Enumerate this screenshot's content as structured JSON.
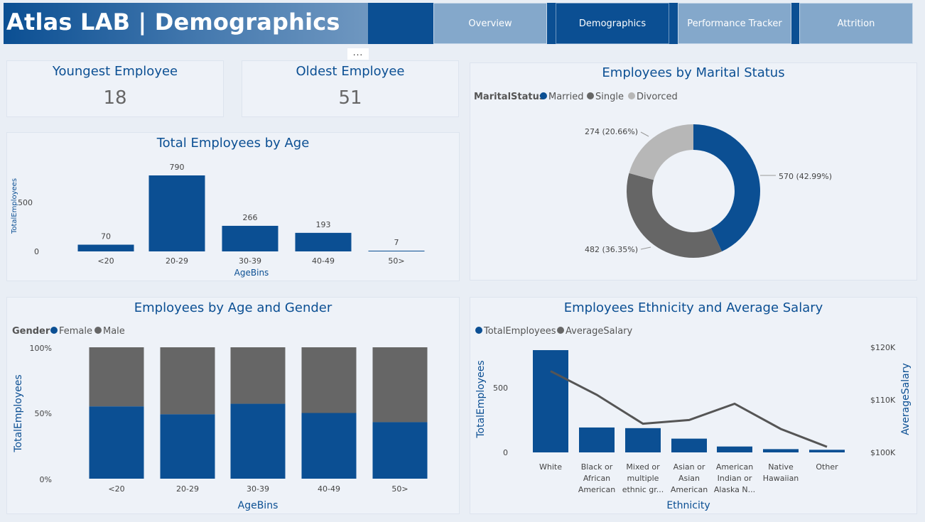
{
  "header": {
    "title": "Atlas LAB | Demographics"
  },
  "nav": {
    "tabs": [
      {
        "label": "Overview"
      },
      {
        "label": "Demographics"
      },
      {
        "label": "Performance Tracker"
      },
      {
        "label": "Attrition"
      }
    ],
    "more": "..."
  },
  "kpis": {
    "youngest": {
      "label": "Youngest Employee",
      "value": "18"
    },
    "oldest": {
      "label": "Oldest Employee",
      "value": "51"
    }
  },
  "colors": {
    "blue": "#0b4f93",
    "darkgray": "#666666",
    "lightgray": "#b7b7b7",
    "line": "#555555"
  },
  "age_chart": {
    "title": "Total Employees by Age",
    "ylabel": "TotalEmployees",
    "xlabel": "AgeBins",
    "ticks": [
      "500",
      "0"
    ]
  },
  "marital_chart": {
    "title": "Employees by Marital Status",
    "legend_title": "MaritalStatus",
    "legend": [
      "Married",
      "Single",
      "Divorced"
    ],
    "labels": [
      "570 (42.99%)",
      "482 (36.35%)",
      "274 (20.66%)"
    ]
  },
  "gender_chart": {
    "title": "Employees by Age and Gender",
    "legend_title": "Gender",
    "legend": [
      "Female",
      "Male"
    ],
    "ylabel": "TotalEmployees",
    "xlabel": "AgeBins",
    "ticks": [
      "100%",
      "50%",
      "0%"
    ]
  },
  "eth_chart": {
    "title": "Employees Ethnicity and Average Salary",
    "legend": [
      "TotalEmployees",
      "AverageSalary"
    ],
    "ylabel": "TotalEmployees",
    "y2label": "AverageSalary",
    "xlabel": "Ethnicity",
    "ticks": [
      "500",
      "0"
    ],
    "ticks2": [
      "$120K",
      "$110K",
      "$100K"
    ],
    "cat_lines": [
      [
        "White"
      ],
      [
        "Black or",
        "African",
        "American"
      ],
      [
        "Mixed or",
        "multiple",
        "ethnic gr..."
      ],
      [
        "Asian or",
        "Asian",
        "American"
      ],
      [
        "American",
        "Indian or",
        "Alaska N..."
      ],
      [
        "Native",
        "Hawaiian"
      ],
      [
        "Other"
      ]
    ]
  },
  "chart_data": [
    {
      "type": "bar",
      "title": "Total Employees by Age",
      "categories": [
        "<20",
        "20-29",
        "30-39",
        "40-49",
        "50>"
      ],
      "values": [
        70,
        790,
        266,
        193,
        7
      ],
      "xlabel": "AgeBins",
      "ylabel": "TotalEmployees",
      "ylim": [
        0,
        790
      ]
    },
    {
      "type": "pie",
      "title": "Employees by Marital Status",
      "categories": [
        "Married",
        "Single",
        "Divorced"
      ],
      "values": [
        570,
        482,
        274
      ],
      "percents": [
        42.99,
        36.35,
        20.66
      ],
      "donut": true
    },
    {
      "type": "bar",
      "stacked": "percent",
      "title": "Employees by Age and Gender",
      "categories": [
        "<20",
        "20-29",
        "30-39",
        "40-49",
        "50>"
      ],
      "series": [
        {
          "name": "Female",
          "values": [
            55,
            49,
            57,
            50,
            43
          ]
        },
        {
          "name": "Male",
          "values": [
            45,
            51,
            43,
            50,
            57
          ]
        }
      ],
      "xlabel": "AgeBins",
      "ylabel": "TotalEmployees",
      "ylim": [
        0,
        100
      ]
    },
    {
      "type": "bar",
      "title": "Employees Ethnicity and Average Salary",
      "categories": [
        "White",
        "Black or African American",
        "Mixed or multiple ethnic gr...",
        "Asian or Asian American",
        "American Indian or Alaska N...",
        "Native Hawaiian",
        "Other"
      ],
      "series": [
        {
          "name": "TotalEmployees",
          "type": "bar",
          "values": [
            780,
            190,
            185,
            105,
            45,
            25,
            20
          ]
        },
        {
          "name": "AverageSalary",
          "type": "line",
          "values": [
            116000,
            111500,
            106000,
            106700,
            109800,
            105000,
            101600
          ]
        }
      ],
      "xlabel": "Ethnicity",
      "ylabel": "TotalEmployees",
      "y2label": "AverageSalary",
      "ylim": [
        0,
        780
      ],
      "y2lim": [
        100000,
        120000
      ]
    }
  ]
}
